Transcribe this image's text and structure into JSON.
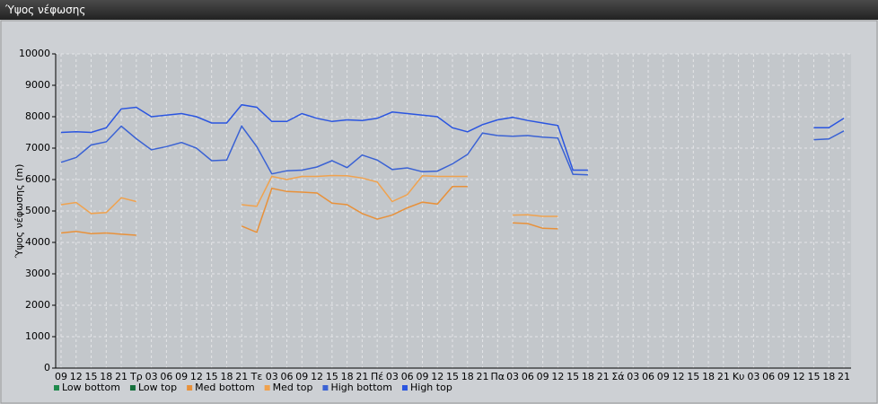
{
  "chart_data": {
    "type": "line",
    "title": "Ύψος νέφωσης",
    "y_label": "Ύψος νέφωσης (m)",
    "categories": [
      "09",
      "12",
      "15",
      "18",
      "21",
      "Τρ",
      "03",
      "06",
      "09",
      "12",
      "15",
      "18",
      "21",
      "Τε",
      "03",
      "06",
      "09",
      "12",
      "15",
      "18",
      "21",
      "Πέ",
      "03",
      "06",
      "09",
      "12",
      "15",
      "18",
      "21",
      "Πα",
      "03",
      "06",
      "09",
      "12",
      "15",
      "18",
      "21",
      "Σά",
      "03",
      "06",
      "09",
      "12",
      "15",
      "18",
      "21",
      "Κυ",
      "03",
      "06",
      "09",
      "12",
      "15",
      "18",
      "21"
    ],
    "ylim": [
      0,
      10000
    ],
    "yticks": [
      0,
      1000,
      2000,
      3000,
      4000,
      5000,
      6000,
      7000,
      8000,
      9000,
      10000
    ],
    "grid": true,
    "series": [
      {
        "name": "Low bottom",
        "color": "#1f8a4c",
        "values": [
          null,
          null,
          null,
          null,
          null,
          null,
          null,
          null,
          null,
          null,
          null,
          null,
          null,
          null,
          null,
          null,
          null,
          null,
          null,
          null,
          null,
          null,
          null,
          null,
          null,
          null,
          null,
          null,
          null,
          null,
          null,
          null,
          null,
          null,
          null,
          null,
          null,
          null,
          null,
          null,
          null,
          null,
          null,
          null,
          null,
          null,
          null,
          null,
          null,
          null,
          null,
          null,
          null
        ]
      },
      {
        "name": "Low top",
        "color": "#16703c",
        "values": [
          null,
          null,
          null,
          null,
          null,
          null,
          null,
          null,
          null,
          null,
          null,
          null,
          null,
          null,
          null,
          null,
          null,
          null,
          null,
          null,
          null,
          null,
          null,
          null,
          null,
          null,
          null,
          null,
          null,
          null,
          null,
          null,
          null,
          null,
          null,
          null,
          null,
          null,
          null,
          null,
          null,
          null,
          null,
          null,
          null,
          null,
          null,
          null,
          null,
          null,
          null,
          null,
          null
        ]
      },
      {
        "name": "Med bottom",
        "color": "#e8913a",
        "values": [
          4300,
          4350,
          4280,
          4300,
          4260,
          4230,
          null,
          null,
          null,
          null,
          null,
          null,
          4520,
          4320,
          5720,
          5620,
          5600,
          5570,
          5250,
          5200,
          4920,
          4740,
          4870,
          5100,
          5280,
          5220,
          5780,
          5780,
          null,
          null,
          4620,
          4600,
          4450,
          4430,
          null,
          null,
          null,
          null,
          null,
          null,
          null,
          null,
          null,
          null,
          null,
          null,
          null,
          null,
          null,
          null,
          null,
          null,
          null
        ]
      },
      {
        "name": "Med top",
        "color": "#f0a24e",
        "values": [
          5200,
          5270,
          4920,
          4950,
          5420,
          5300,
          null,
          null,
          null,
          null,
          null,
          null,
          5200,
          5150,
          6100,
          6000,
          6100,
          6100,
          6130,
          6120,
          6050,
          5920,
          5300,
          5520,
          6120,
          6100,
          6100,
          6100,
          null,
          null,
          4870,
          4880,
          4830,
          4830,
          null,
          null,
          null,
          null,
          null,
          null,
          null,
          null,
          null,
          null,
          null,
          null,
          null,
          null,
          null,
          null,
          null,
          null,
          null
        ]
      },
      {
        "name": "High bottom",
        "color": "#3a62d4",
        "values": [
          6550,
          6700,
          7100,
          7200,
          7700,
          7300,
          6950,
          7050,
          7180,
          7000,
          6600,
          6620,
          7700,
          7050,
          6180,
          6280,
          6300,
          6400,
          6600,
          6380,
          6780,
          6620,
          6320,
          6370,
          6250,
          6270,
          6500,
          6800,
          7480,
          7400,
          7380,
          7400,
          7350,
          7320,
          6170,
          6150,
          null,
          null,
          null,
          null,
          null,
          null,
          null,
          null,
          null,
          null,
          null,
          null,
          null,
          null,
          7270,
          7290,
          7550
        ]
      },
      {
        "name": "High top",
        "color": "#2a55e0",
        "values": [
          7500,
          7520,
          7500,
          7650,
          8250,
          8300,
          8000,
          8050,
          8100,
          8000,
          7800,
          7800,
          8380,
          8300,
          7850,
          7850,
          8100,
          7950,
          7850,
          7900,
          7880,
          7950,
          8150,
          8100,
          8050,
          8000,
          7650,
          7520,
          7750,
          7900,
          7980,
          7880,
          7800,
          7720,
          6300,
          6300,
          null,
          null,
          null,
          null,
          null,
          null,
          null,
          null,
          null,
          null,
          null,
          null,
          null,
          null,
          7650,
          7650,
          7950
        ]
      }
    ]
  }
}
